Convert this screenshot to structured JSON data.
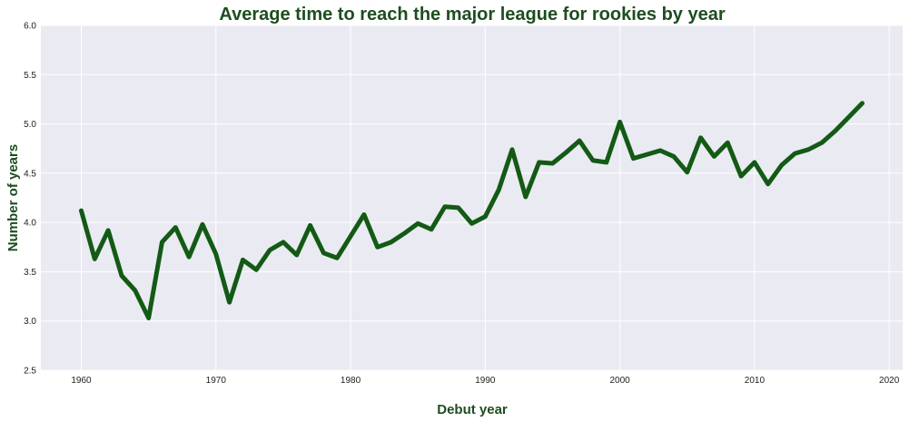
{
  "colors": {
    "line": "#135a15",
    "title": "#1e4d20",
    "plot_background": "#eaeaf2",
    "grid": "#ffffff"
  },
  "chart_data": {
    "type": "line",
    "title": "Average time to reach the major league for rookies by year",
    "xlabel": "Debut year",
    "ylabel": "Number of years",
    "xlim": [
      1957,
      2021
    ],
    "ylim": [
      2.5,
      6.0
    ],
    "xticks": [
      "1960",
      "1970",
      "1980",
      "1990",
      "2000",
      "2010",
      "2020"
    ],
    "yticks": [
      "2.5",
      "3.0",
      "3.5",
      "4.0",
      "4.5",
      "5.0",
      "5.5",
      "6.0"
    ],
    "grid": true,
    "legend": "none",
    "series": [
      {
        "x": [
          1960,
          1961,
          1962,
          1963,
          1964,
          1965,
          1966,
          1967,
          1968,
          1969,
          1970,
          1971,
          1972,
          1973,
          1974,
          1975,
          1976,
          1977,
          1978,
          1979,
          1980,
          1981,
          1982,
          1983,
          1984,
          1985,
          1986,
          1987,
          1988,
          1989,
          1990,
          1991,
          1992,
          1993,
          1994,
          1995,
          1996,
          1997,
          1998,
          1999,
          2000,
          2001,
          2002,
          2003,
          2004,
          2005,
          2006,
          2007,
          2008,
          2009,
          2010,
          2011,
          2012,
          2013,
          2014,
          2015,
          2016,
          2017,
          2018
        ],
        "y": [
          4.12,
          3.63,
          3.92,
          3.46,
          3.31,
          3.03,
          3.8,
          3.95,
          3.65,
          3.98,
          3.68,
          3.19,
          3.62,
          3.52,
          3.72,
          3.8,
          3.67,
          3.97,
          3.69,
          3.64,
          3.86,
          4.08,
          3.75,
          3.8,
          3.89,
          3.99,
          3.93,
          4.16,
          4.15,
          3.99,
          4.06,
          4.33,
          4.74,
          4.26,
          4.61,
          4.6,
          4.71,
          4.83,
          4.63,
          4.61,
          5.02,
          4.65,
          4.69,
          4.73,
          4.67,
          4.51,
          4.86,
          4.67,
          4.81,
          4.47,
          4.61,
          4.39,
          4.58,
          4.7,
          4.74,
          4.81,
          4.93,
          5.07,
          5.21
        ]
      }
    ]
  }
}
